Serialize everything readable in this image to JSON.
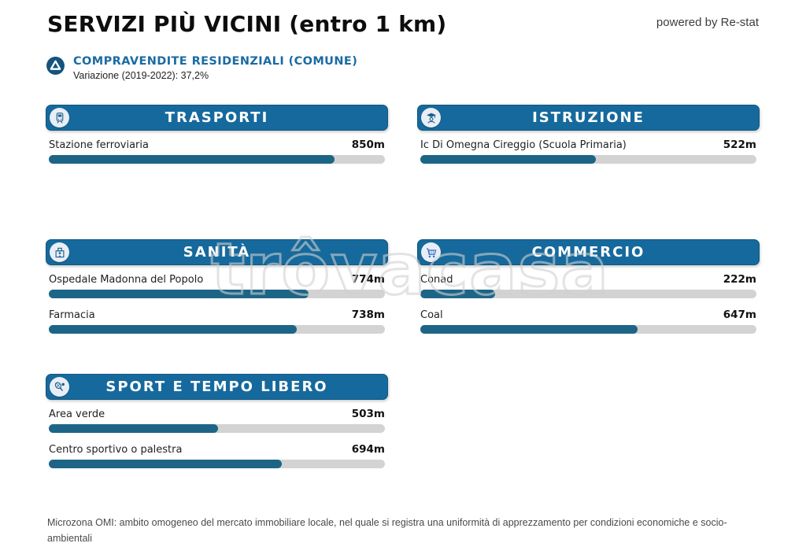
{
  "header": {
    "title": "SERVIZI PIÙ VICINI (entro 1 km)",
    "powered_by": "powered by Re-stat"
  },
  "summary": {
    "icon": "arrow-up-circle-icon",
    "label": "COMPRAVENDITE RESIDENZIALI (COMUNE)",
    "variation": "Variazione (2019-2022): 37,2%"
  },
  "watermark": {
    "text": "trôvacasa"
  },
  "footer": {
    "note": "Microzona OMI: ambito omogeneo del mercato immobiliare locale, nel quale si registra una uniformità di apprezzamento per condizioni economiche e socio-ambientali"
  },
  "colors": {
    "header_bar": "#16699c",
    "header_bar_border": "#0f577f",
    "bar_fill": "#1d6587",
    "bar_track": "#d3d3d3",
    "summary_blue": "#1a6ba3",
    "icon_blue": "#1c5f8e",
    "cart_blue": "#3a6fc4"
  },
  "chart_data": {
    "type": "bar",
    "orientation": "horizontal",
    "title": "SERVIZI PIÙ VICINI (entro 1 km)",
    "unit": "m",
    "xlim": [
      0,
      1000
    ],
    "grid": false,
    "legend": "none",
    "groups": [
      {
        "name": "TRASPORTI",
        "icon": "train-icon",
        "items": [
          {
            "label": "Stazione ferroviaria",
            "value": 850,
            "display": "850m"
          }
        ]
      },
      {
        "name": "ISTRUZIONE",
        "icon": "graduate-icon",
        "items": [
          {
            "label": "Ic Di Omegna Cireggio (Scuola Primaria)",
            "value": 522,
            "display": "522m"
          }
        ]
      },
      {
        "name": "SANITÀ",
        "icon": "hospital-icon",
        "items": [
          {
            "label": "Ospedale Madonna del Popolo",
            "value": 774,
            "display": "774m"
          },
          {
            "label": "Farmacia",
            "value": 738,
            "display": "738m"
          }
        ]
      },
      {
        "name": "COMMERCIO",
        "icon": "cart-icon",
        "items": [
          {
            "label": "Conad",
            "value": 222,
            "display": "222m"
          },
          {
            "label": "Coal",
            "value": 647,
            "display": "647m"
          }
        ]
      },
      {
        "name": "SPORT E TEMPO LIBERO",
        "icon": "tennis-icon",
        "items": [
          {
            "label": "Area verde",
            "value": 503,
            "display": "503m"
          },
          {
            "label": "Centro sportivo o palestra",
            "value": 694,
            "display": "694m"
          }
        ]
      }
    ]
  }
}
